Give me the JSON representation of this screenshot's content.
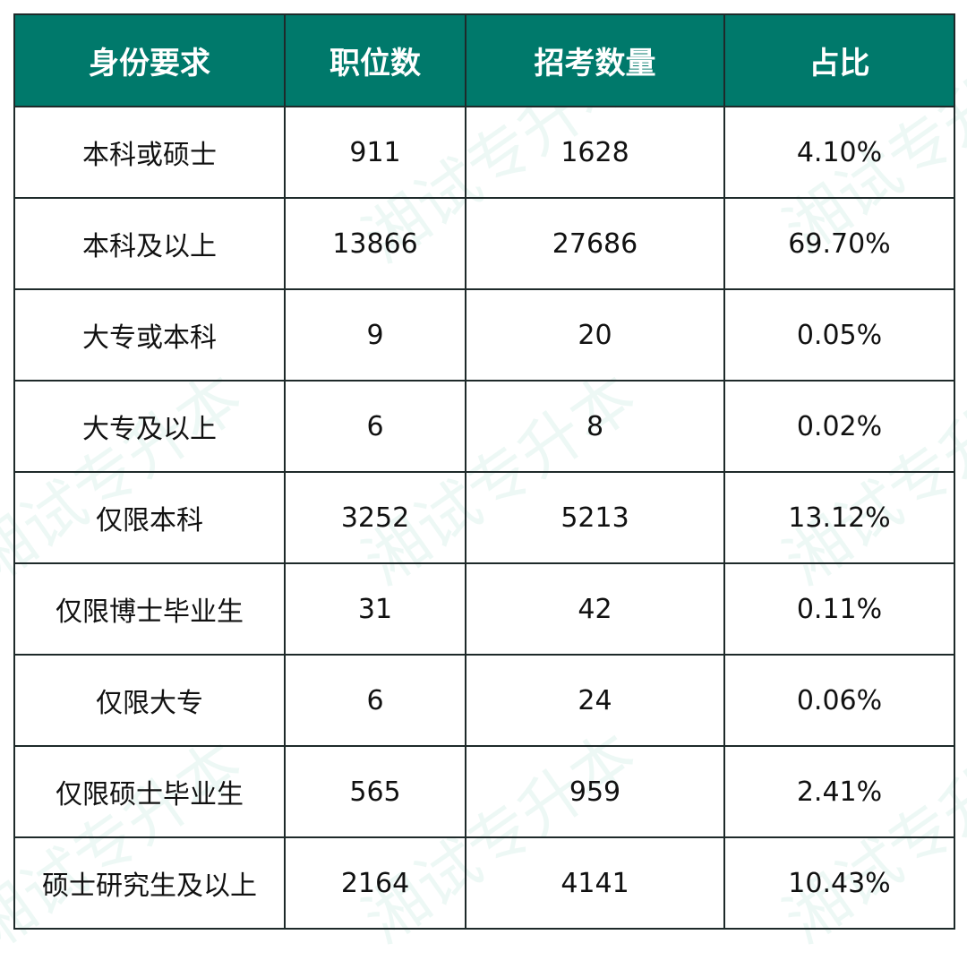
{
  "chart_data": {
    "type": "table",
    "columns": [
      "身份要求",
      "职位数",
      "招考数量",
      "占比"
    ],
    "rows": [
      [
        "本科或硕士",
        "911",
        "1628",
        "4.10%"
      ],
      [
        "本科及以上",
        "13866",
        "27686",
        "69.70%"
      ],
      [
        "大专或本科",
        "9",
        "20",
        "0.05%"
      ],
      [
        "大专及以上",
        "6",
        "8",
        "0.02%"
      ],
      [
        "仅限本科",
        "3252",
        "5213",
        "13.12%"
      ],
      [
        "仅限博士毕业生",
        "31",
        "42",
        "0.11%"
      ],
      [
        "仅限大专",
        "6",
        "24",
        "0.06%"
      ],
      [
        "仅限硕士毕业生",
        "565",
        "959",
        "2.41%"
      ],
      [
        "硕士研究生及以上",
        "2164",
        "4141",
        "10.43%"
      ]
    ],
    "header_color": "#00796b",
    "header_text_color": "#ffffff",
    "border_color": "#1e2a2a"
  },
  "watermark": "湘试专升本"
}
